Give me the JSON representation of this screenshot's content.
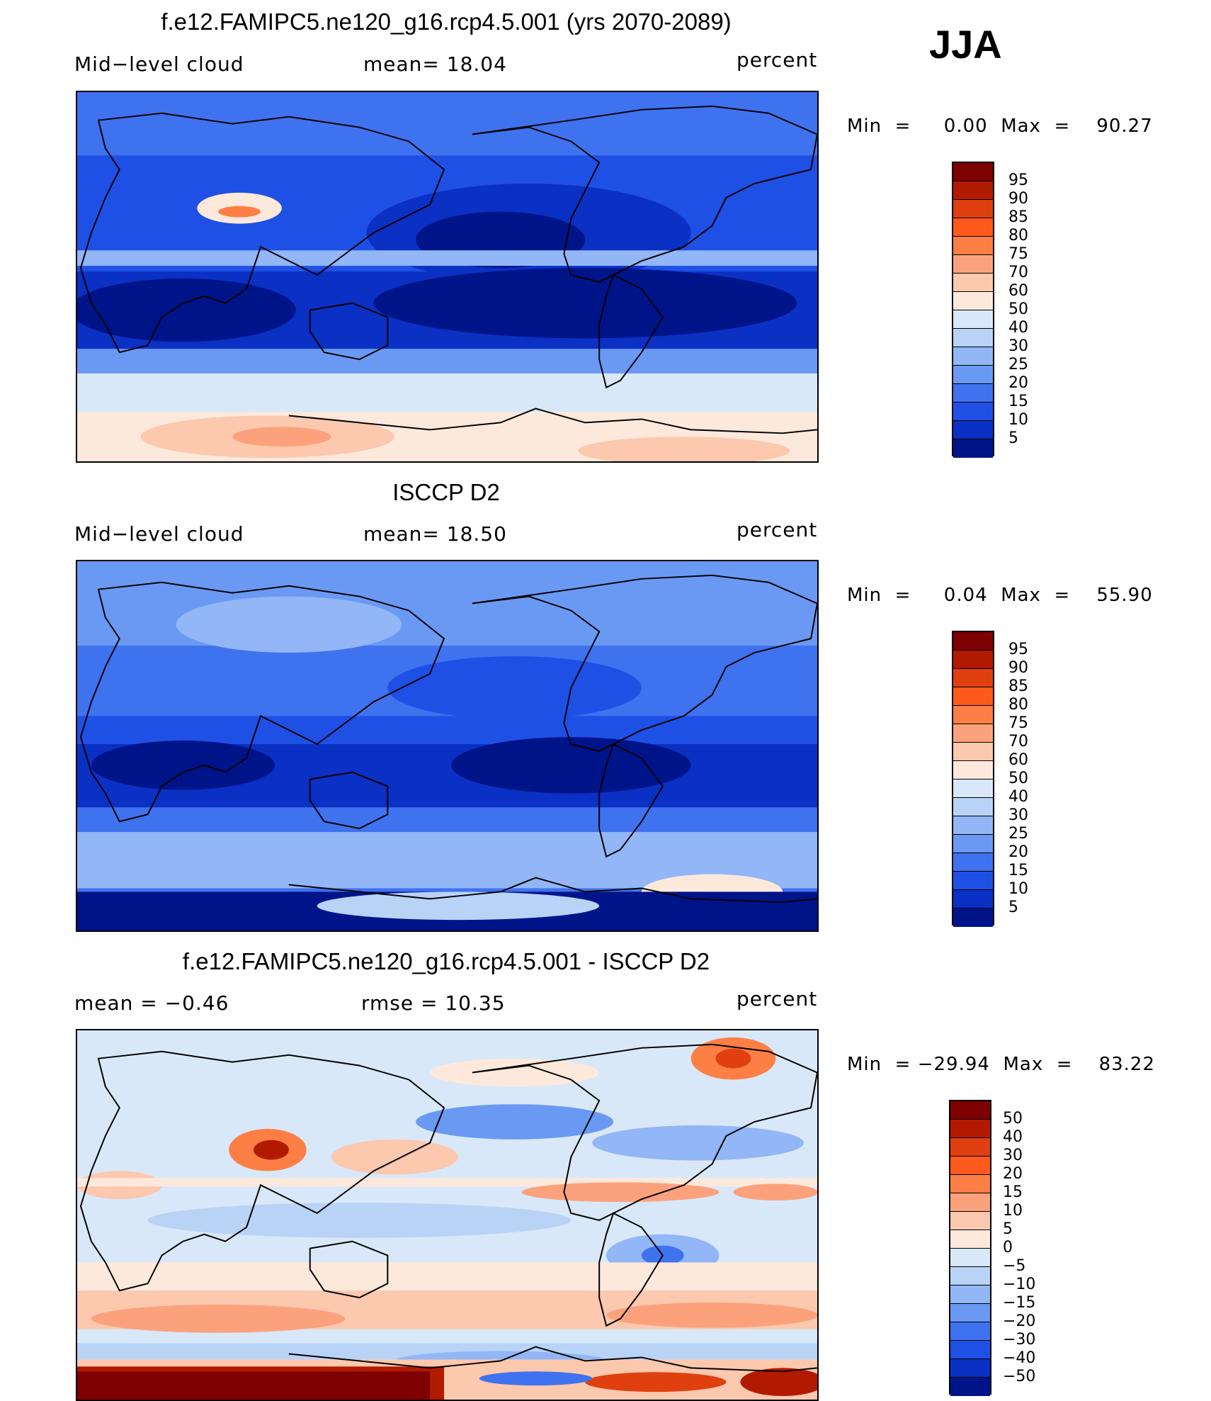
{
  "season": "JJA",
  "units_label": "percent",
  "colorbar_colors": [
    "#7f0000",
    "#b21a00",
    "#e0400f",
    "#ff5a1e",
    "#fd7f45",
    "#fba27d",
    "#fcc8ae",
    "#fde9dc",
    "#d9e8f8",
    "#b9d3f6",
    "#92b6f6",
    "#6a99f4",
    "#3f72ef",
    "#1f50e6",
    "#0a30c4",
    "#00148a"
  ],
  "diff_colors": [
    "#7f0000",
    "#b21a00",
    "#e0400f",
    "#ff5a1e",
    "#fd7f45",
    "#fba27d",
    "#fcc8ae",
    "#fde9dc",
    "#d9e8f8",
    "#b9d3f6",
    "#92b6f6",
    "#6a99f4",
    "#3f72ef",
    "#1f50e6",
    "#0a30c4",
    "#00148a"
  ],
  "panels": [
    {
      "title": "f.e12.FAMIPC5.ne120_g16.rcp4.5.001 (yrs 2070-2089)",
      "left_label": "Mid−level  cloud",
      "center_label": "mean=   18.04",
      "right_label": "percent",
      "stats": "Min  =     0.00  Max  =    90.27",
      "colorbar_labels": [
        "95",
        "90",
        "85",
        "80",
        "75",
        "70",
        "60",
        "50",
        "40",
        "30",
        "25",
        "20",
        "15",
        "10",
        "5"
      ]
    },
    {
      "title": "ISCCP D2",
      "left_label": "Mid−level  cloud",
      "center_label": "mean=   18.50",
      "right_label": "percent",
      "stats": "Min  =     0.04  Max  =    55.90",
      "colorbar_labels": [
        "95",
        "90",
        "85",
        "80",
        "75",
        "70",
        "60",
        "50",
        "40",
        "30",
        "25",
        "20",
        "15",
        "10",
        "5"
      ]
    },
    {
      "title": "f.e12.FAMIPC5.ne120_g16.rcp4.5.001 - ISCCP D2",
      "left_label": "mean  =    −0.46",
      "center_label": "rmse  =    10.35",
      "right_label": "percent",
      "stats": "Min  = −29.94  Max  =    83.22",
      "colorbar_labels": [
        "50",
        "40",
        "30",
        "20",
        "15",
        "10",
        "5",
        "0",
        "−5",
        "−10",
        "−15",
        "−20",
        "−30",
        "−40",
        "−50"
      ]
    }
  ]
}
